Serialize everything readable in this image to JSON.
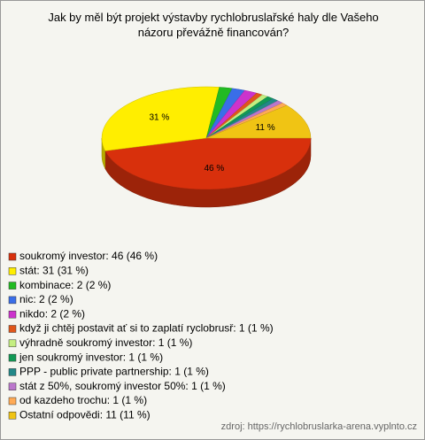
{
  "chart_data": {
    "type": "pie",
    "title": "Jak by měl být projekt výstavby rychlobruslařské haly dle Vašeho názoru převážně financován?",
    "categories": [
      "soukromý investor: 46 (46 %)",
      "stát: 31 (31 %)",
      "kombinace: 2 (2 %)",
      "nic: 2 (2 %)",
      "nikdo: 2 (2 %)",
      "když ji chtěj postavit ať si to zaplatí ryclobrusř: 1 (1 %)",
      "výhradně soukromý investor: 1 (1 %)",
      "jen soukromý investor: 1 (1 %)",
      "PPP - public private partnership: 1 (1 %)",
      "stát z 50%, soukromý investor 50%: 1 (1 %)",
      "od kazdeho trochu: 1 (1 %)",
      "Ostatní odpovědi: 11 (11 %)"
    ],
    "values": [
      46,
      31,
      2,
      2,
      2,
      1,
      1,
      1,
      1,
      1,
      1,
      11
    ],
    "value_labels": [
      "46 %",
      "31 %",
      null,
      null,
      null,
      null,
      null,
      null,
      null,
      null,
      null,
      "11 %"
    ],
    "colors": [
      "#d8300c",
      "#ffee00",
      "#22bb22",
      "#3a6ee8",
      "#cc33cc",
      "#e0561a",
      "#c4ee80",
      "#119955",
      "#228888",
      "#bb77cc",
      "#ffaa55",
      "#f0c414"
    ],
    "source": "zdroj: https://rychlobruslarka-arena.vyplnto.cz"
  }
}
